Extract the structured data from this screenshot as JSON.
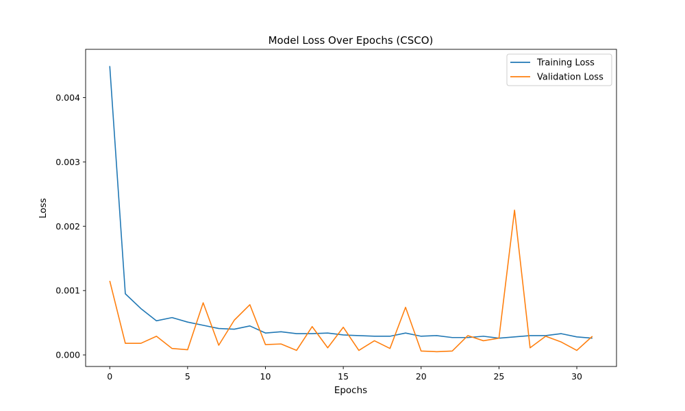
{
  "chart_data": {
    "type": "line",
    "title": "Model Loss Over Epochs (CSCO)",
    "xlabel": "Epochs",
    "ylabel": "Loss",
    "xlim": [
      -1.55,
      32.55
    ],
    "ylim": [
      -0.00018,
      0.00475
    ],
    "xticks": [
      0,
      5,
      10,
      15,
      20,
      25,
      30
    ],
    "yticks": [
      0.0,
      0.001,
      0.002,
      0.003,
      0.004
    ],
    "ytick_labels": [
      "0.000",
      "0.001",
      "0.002",
      "0.003",
      "0.004"
    ],
    "grid": false,
    "legend_position": "top-right",
    "x": [
      0,
      1,
      2,
      3,
      4,
      5,
      6,
      7,
      8,
      9,
      10,
      11,
      12,
      13,
      14,
      15,
      16,
      17,
      18,
      19,
      20,
      21,
      22,
      23,
      24,
      25,
      26,
      27,
      28,
      29,
      30,
      31
    ],
    "series": [
      {
        "name": "Training Loss",
        "color": "#1f77b4",
        "values": [
          0.00449,
          0.00095,
          0.00072,
          0.00053,
          0.00058,
          0.00051,
          0.00046,
          0.00041,
          0.0004,
          0.00045,
          0.00034,
          0.00036,
          0.00033,
          0.00033,
          0.00034,
          0.00031,
          0.0003,
          0.00029,
          0.00029,
          0.00034,
          0.00029,
          0.0003,
          0.00027,
          0.00027,
          0.00029,
          0.00026,
          0.00028,
          0.0003,
          0.0003,
          0.00033,
          0.00028,
          0.00026
        ]
      },
      {
        "name": "Validation Loss",
        "color": "#ff7f0e",
        "values": [
          0.00115,
          0.00018,
          0.00018,
          0.00029,
          0.0001,
          8e-05,
          0.00081,
          0.00015,
          0.00054,
          0.00078,
          0.00016,
          0.00017,
          7e-05,
          0.00044,
          0.00011,
          0.00043,
          7e-05,
          0.00022,
          0.0001,
          0.00074,
          6e-05,
          5e-05,
          6e-05,
          0.0003,
          0.00022,
          0.00026,
          0.00225,
          0.00011,
          0.00029,
          0.0002,
          7e-05,
          0.00029
        ]
      }
    ]
  }
}
